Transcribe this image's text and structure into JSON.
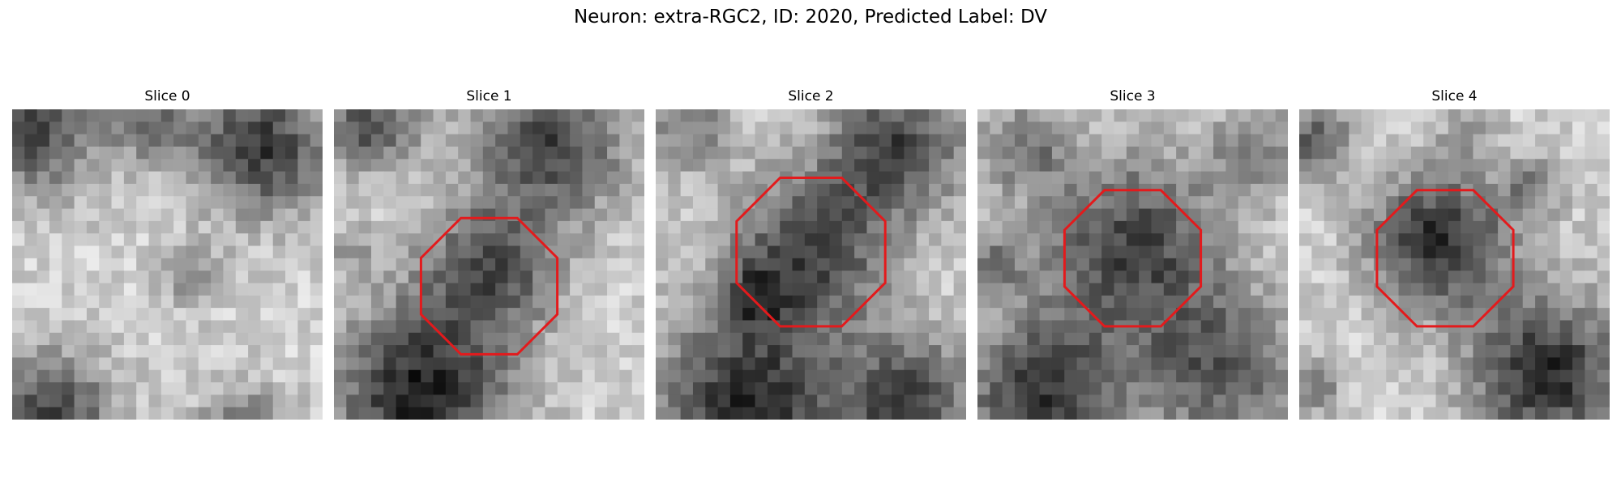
{
  "figure": {
    "title": "Neuron: extra-RGC2, ID: 2020, Predicted Label: DV"
  },
  "panels": [
    {
      "title": "Slice 0",
      "has_outline": false
    },
    {
      "title": "Slice 1",
      "has_outline": true
    },
    {
      "title": "Slice 2",
      "has_outline": true
    },
    {
      "title": "Slice 3",
      "has_outline": true
    },
    {
      "title": "Slice 4",
      "has_outline": true
    }
  ],
  "style": {
    "outline_color": "#e31a1c",
    "colormap": "gray"
  }
}
